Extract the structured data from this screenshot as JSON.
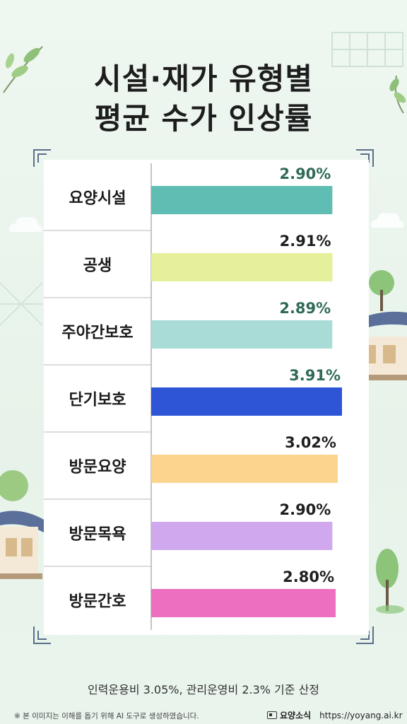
{
  "header": {
    "title_line1": "시설·재가 유형별",
    "title_line2": "평균 수가 인상률"
  },
  "chart_data": {
    "type": "bar",
    "orientation": "horizontal",
    "categories": [
      "요양시설",
      "공생",
      "주야간보호",
      "단기보호",
      "방문요양",
      "방문목욕",
      "방문간호"
    ],
    "values": [
      2.9,
      2.91,
      2.89,
      3.91,
      3.02,
      2.9,
      2.8
    ],
    "value_labels": [
      "2.90%",
      "2.91%",
      "2.89%",
      "3.91%",
      "3.02%",
      "2.90%",
      "2.80%"
    ],
    "bar_colors": [
      "#5fbdb4",
      "#e6f09a",
      "#a9dcd6",
      "#2e55d6",
      "#fcd48e",
      "#cfa8ee",
      "#ec6fc0"
    ],
    "label_colors": [
      "#2f6b57",
      "#1f1f1f",
      "#2f6b57",
      "#2f6b57",
      "#1f1f1f",
      "#1f1f1f",
      "#1f1f1f"
    ],
    "grid": true,
    "legend": "none"
  },
  "footer": {
    "note": "인력운용비 3.05%, 관리운영비 2.3% 기준 산정",
    "disclaimer": "※ 본 이미지는 이해를 돕기 위해 AI 도구로 생성하였습니다.",
    "brand_name": "요양소식",
    "brand_url": "https://yoyang.ai.kr"
  }
}
